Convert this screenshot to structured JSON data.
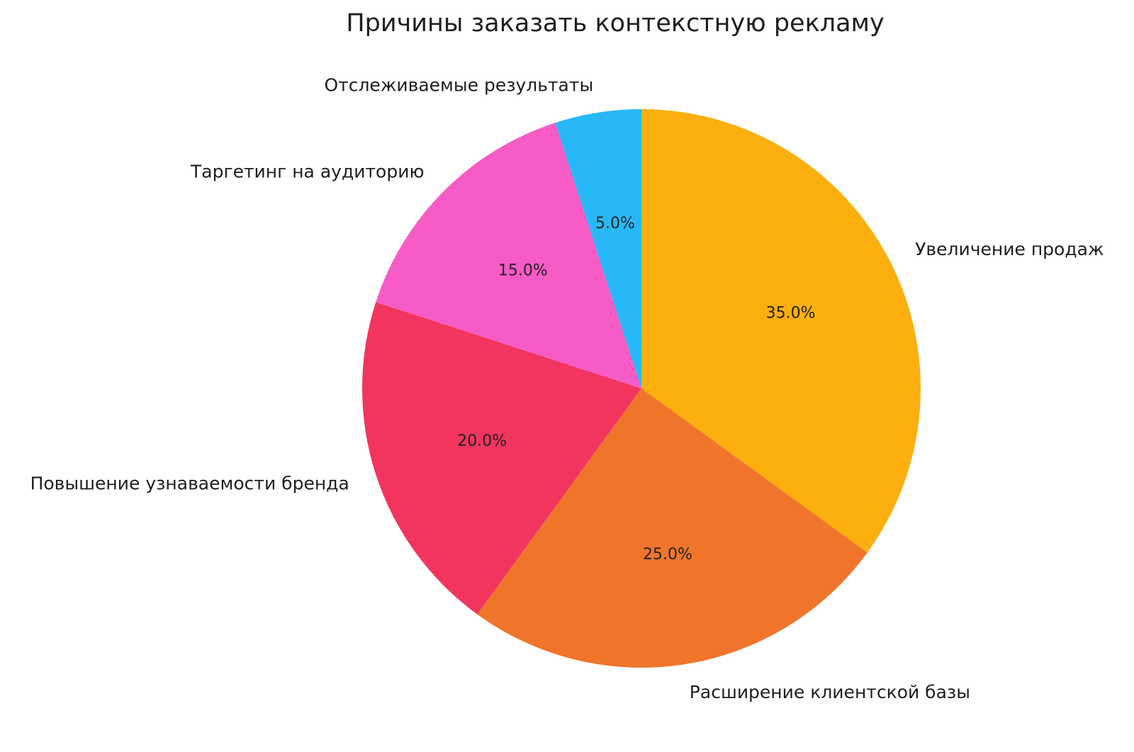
{
  "chart_data": {
    "type": "pie",
    "title": "Причины заказать контекстную рекламу",
    "labels": [
      "Увеличение продаж",
      "Расширение клиентской базы",
      "Повышение узнаваемости бренда",
      "Таргетинг на аудиторию",
      "Отслеживаемые результаты"
    ],
    "values": [
      35.0,
      25.0,
      20.0,
      15.0,
      5.0
    ],
    "pct_labels": [
      "35.0%",
      "25.0%",
      "20.0%",
      "15.0%",
      "5.0%"
    ],
    "colors": [
      "#fcaf0e",
      "#f0752b",
      "#f2355f",
      "#f75bc5",
      "#29b8f7"
    ],
    "start_angle": 90,
    "direction": "clockwise",
    "label_distance": 1.1,
    "pct_distance": 0.6,
    "legend": "none",
    "background_color": "#ffffff",
    "text_color": "#1e1e1e"
  }
}
